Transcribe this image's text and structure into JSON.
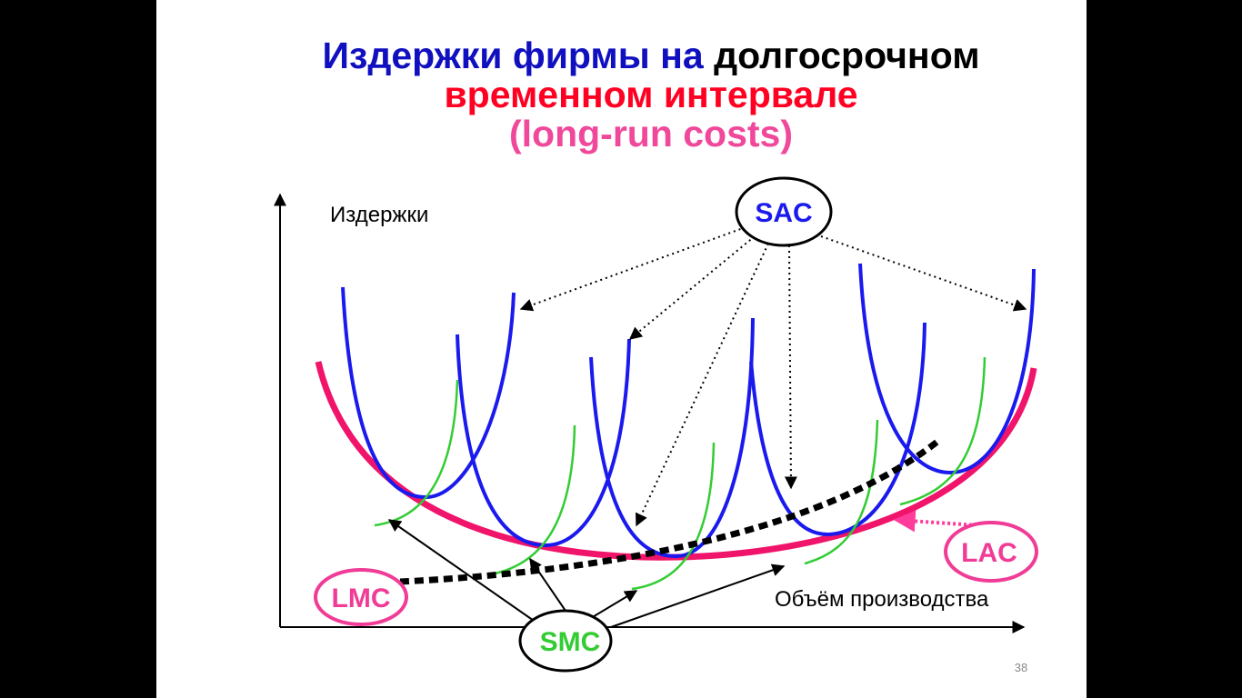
{
  "title": {
    "line1": {
      "part1": "Издержки фирмы на",
      "part2": "долгосрочном"
    },
    "line2": "временном интервале",
    "line3": "(long-run costs)"
  },
  "axes": {
    "y_label": "Издержки",
    "x_label": "Объём производства"
  },
  "labels": {
    "sac": "SAC",
    "lac": "LAC",
    "lmc": "LMC",
    "smc": "SMC"
  },
  "page_number": "38"
}
